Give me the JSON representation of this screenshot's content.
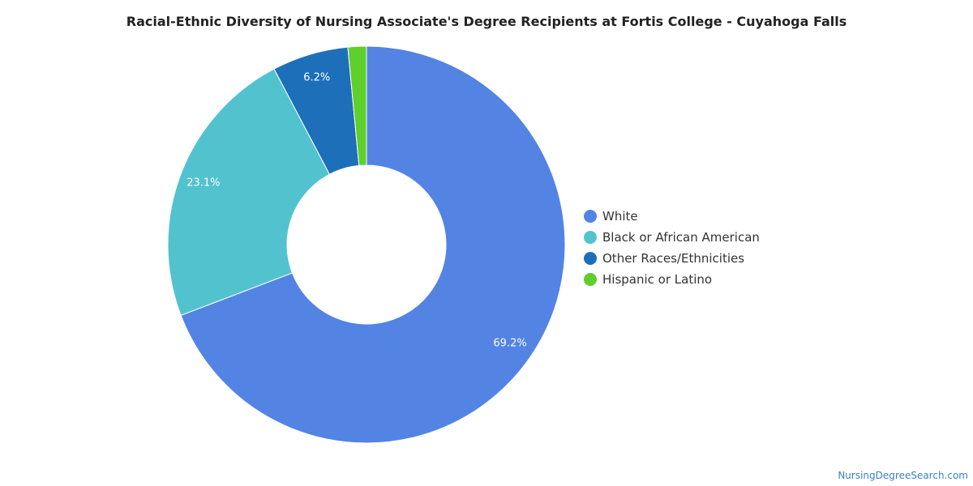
{
  "chart_data": {
    "type": "pie",
    "title": "Racial-Ethnic Diversity of Nursing Associate's Degree Recipients at Fortis College - Cuyahoga Falls",
    "categories": [
      "White",
      "Black or African American",
      "Other Races/Ethnicities",
      "Hispanic or Latino"
    ],
    "values": [
      69.2,
      23.1,
      6.2,
      1.5
    ],
    "data_labels": [
      "69.2%",
      "23.1%",
      "6.2%",
      ""
    ],
    "colors": [
      "#5384e3",
      "#52c2cf",
      "#1d6fba",
      "#5ecf2b"
    ],
    "donut": true,
    "legend_position": "right"
  },
  "watermark": "NursingDegreeSearch.com"
}
